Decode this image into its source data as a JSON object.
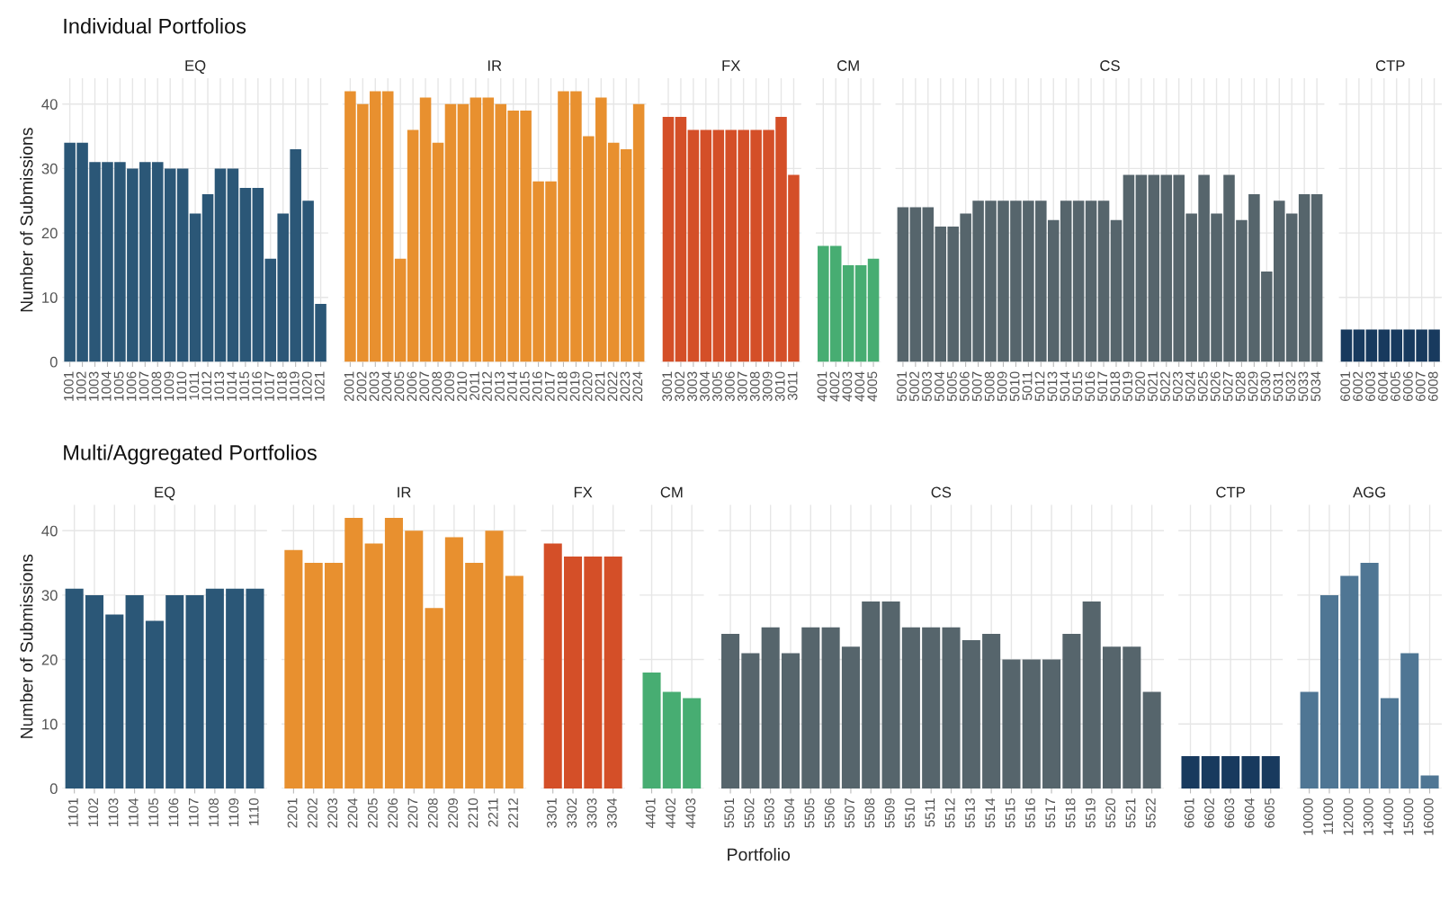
{
  "chart_data": [
    {
      "type": "bar",
      "title": "EQ",
      "subtitle": "Individual Portfolios",
      "ylabel": "Number of Submissions",
      "color": "#2b5777",
      "ylim": [
        0,
        44
      ],
      "yticks": [
        0,
        10,
        20,
        30,
        40
      ],
      "grid": true,
      "categories": [
        "1001",
        "1002",
        "1003",
        "1004",
        "1005",
        "1006",
        "1007",
        "1008",
        "1009",
        "1010",
        "1011",
        "1012",
        "1013",
        "1014",
        "1015",
        "1016",
        "1017",
        "1018",
        "1019",
        "1020",
        "1021"
      ],
      "values": [
        34,
        34,
        31,
        31,
        31,
        30,
        31,
        31,
        30,
        30,
        23,
        26,
        30,
        30,
        27,
        27,
        16,
        23,
        33,
        25,
        9
      ]
    },
    {
      "type": "bar",
      "title": "IR",
      "color": "#e8902f",
      "ylim": [
        0,
        44
      ],
      "yticks": [
        0,
        10,
        20,
        30,
        40
      ],
      "grid": true,
      "tick_labels": "x",
      "categories": [
        "2001",
        "2002",
        "2003",
        "2004",
        "2005",
        "2006",
        "2007",
        "2008",
        "2009",
        "2010",
        "2011",
        "2012",
        "2013",
        "2014",
        "2015",
        "2016",
        "2017",
        "2018",
        "2019",
        "2020",
        "2021",
        "2022",
        "2023",
        "2024"
      ],
      "values": [
        42,
        40,
        42,
        42,
        16,
        36,
        41,
        34,
        40,
        40,
        41,
        41,
        40,
        39,
        39,
        28,
        28,
        42,
        42,
        35,
        41,
        34,
        33,
        40
      ]
    },
    {
      "type": "bar",
      "title": "FX",
      "color": "#d44f28",
      "ylim": [
        0,
        44
      ],
      "yticks": [
        0,
        10,
        20,
        30,
        40
      ],
      "grid": true,
      "tick_labels": "x",
      "categories": [
        "3001",
        "3002",
        "3003",
        "3004",
        "3005",
        "3006",
        "3007",
        "3008",
        "3009",
        "3010",
        "3011"
      ],
      "values": [
        38,
        38,
        36,
        36,
        36,
        36,
        36,
        36,
        36,
        38,
        29
      ]
    },
    {
      "type": "bar",
      "title": "CM",
      "color": "#47ad72",
      "ylim": [
        0,
        44
      ],
      "yticks": [
        0,
        10,
        20,
        30,
        40
      ],
      "grid": true,
      "tick_labels": "x",
      "categories": [
        "4001",
        "4002",
        "4003",
        "4004",
        "4005"
      ],
      "values": [
        18,
        18,
        15,
        15,
        16
      ]
    },
    {
      "type": "bar",
      "title": "CS",
      "color": "#56656c",
      "ylim": [
        0,
        44
      ],
      "yticks": [
        0,
        10,
        20,
        30,
        40
      ],
      "grid": true,
      "tick_labels": "x",
      "categories": [
        "5001",
        "5002",
        "5003",
        "5004",
        "5005",
        "5006",
        "5007",
        "5008",
        "5009",
        "5010",
        "5011",
        "5012",
        "5013",
        "5014",
        "5015",
        "5016",
        "5017",
        "5018",
        "5019",
        "5020",
        "5021",
        "5022",
        "5023",
        "5024",
        "5025",
        "5026",
        "5027",
        "5028",
        "5029",
        "5030",
        "5031",
        "5032",
        "5033",
        "5034"
      ],
      "values": [
        24,
        24,
        24,
        21,
        21,
        23,
        25,
        25,
        25,
        25,
        25,
        25,
        22,
        25,
        25,
        25,
        25,
        22,
        29,
        29,
        29,
        29,
        29,
        23,
        29,
        23,
        29,
        22,
        26,
        14,
        25,
        23,
        26,
        26
      ]
    },
    {
      "type": "bar",
      "title": "CTP",
      "color": "#183a5e",
      "ylim": [
        0,
        44
      ],
      "yticks": [
        0,
        10,
        20,
        30,
        40
      ],
      "grid": true,
      "tick_labels": "x",
      "categories": [
        "6001",
        "6002",
        "6003",
        "6004",
        "6005",
        "6006",
        "6007",
        "6008"
      ],
      "values": [
        5,
        5,
        5,
        5,
        5,
        5,
        5,
        5
      ]
    },
    {
      "type": "bar",
      "title": "EQ",
      "subtitle": "Multi/Aggregated Portfolios",
      "ylabel": "Number of Submissions",
      "color": "#2b5777",
      "ylim": [
        0,
        44
      ],
      "yticks": [
        0,
        10,
        20,
        30,
        40
      ],
      "grid": true,
      "categories": [
        "1101",
        "1102",
        "1103",
        "1104",
        "1105",
        "1106",
        "1107",
        "1108",
        "1109",
        "1110"
      ],
      "values": [
        31,
        30,
        27,
        30,
        26,
        30,
        30,
        31,
        31,
        31
      ]
    },
    {
      "type": "bar",
      "title": "IR",
      "color": "#e8902f",
      "ylim": [
        0,
        44
      ],
      "yticks": [
        0,
        10,
        20,
        30,
        40
      ],
      "grid": true,
      "tick_labels": "x",
      "categories": [
        "2201",
        "2202",
        "2203",
        "2204",
        "2205",
        "2206",
        "2207",
        "2208",
        "2209",
        "2210",
        "2211",
        "2212"
      ],
      "values": [
        37,
        35,
        35,
        42,
        38,
        42,
        40,
        28,
        39,
        35,
        40,
        33
      ]
    },
    {
      "type": "bar",
      "title": "FX",
      "color": "#d44f28",
      "ylim": [
        0,
        44
      ],
      "yticks": [
        0,
        10,
        20,
        30,
        40
      ],
      "grid": true,
      "tick_labels": "x",
      "categories": [
        "3301",
        "3302",
        "3303",
        "3304"
      ],
      "values": [
        38,
        36,
        36,
        36
      ]
    },
    {
      "type": "bar",
      "title": "CM",
      "color": "#47ad72",
      "ylim": [
        0,
        44
      ],
      "yticks": [
        0,
        10,
        20,
        30,
        40
      ],
      "grid": true,
      "tick_labels": "x",
      "categories": [
        "4401",
        "4402",
        "4403"
      ],
      "values": [
        18,
        15,
        14
      ]
    },
    {
      "type": "bar",
      "title": "CS",
      "xlabel": "Portfolio",
      "color": "#56656c",
      "ylim": [
        0,
        44
      ],
      "yticks": [
        0,
        10,
        20,
        30,
        40
      ],
      "grid": true,
      "tick_labels": "x",
      "categories": [
        "5501",
        "5502",
        "5503",
        "5504",
        "5505",
        "5506",
        "5507",
        "5508",
        "5509",
        "5510",
        "5511",
        "5512",
        "5513",
        "5514",
        "5515",
        "5516",
        "5517",
        "5518",
        "5519",
        "5520",
        "5521",
        "5522"
      ],
      "values": [
        24,
        21,
        25,
        21,
        25,
        25,
        22,
        29,
        29,
        25,
        25,
        25,
        23,
        24,
        20,
        20,
        20,
        24,
        29,
        22,
        22,
        15
      ]
    },
    {
      "type": "bar",
      "title": "CTP",
      "color": "#183a5e",
      "ylim": [
        0,
        44
      ],
      "yticks": [
        0,
        10,
        20,
        30,
        40
      ],
      "grid": true,
      "tick_labels": "x",
      "categories": [
        "6601",
        "6602",
        "6603",
        "6604",
        "6605"
      ],
      "values": [
        5,
        5,
        5,
        5,
        5
      ]
    },
    {
      "type": "bar",
      "title": "AGG",
      "color": "#4f7694",
      "ylim": [
        0,
        44
      ],
      "yticks": [
        0,
        10,
        20,
        30,
        40
      ],
      "grid": true,
      "tick_labels": "x",
      "categories": [
        "10000",
        "11000",
        "12000",
        "13000",
        "14000",
        "15000",
        "16000"
      ],
      "values": [
        15,
        30,
        33,
        35,
        14,
        21,
        2
      ]
    }
  ]
}
